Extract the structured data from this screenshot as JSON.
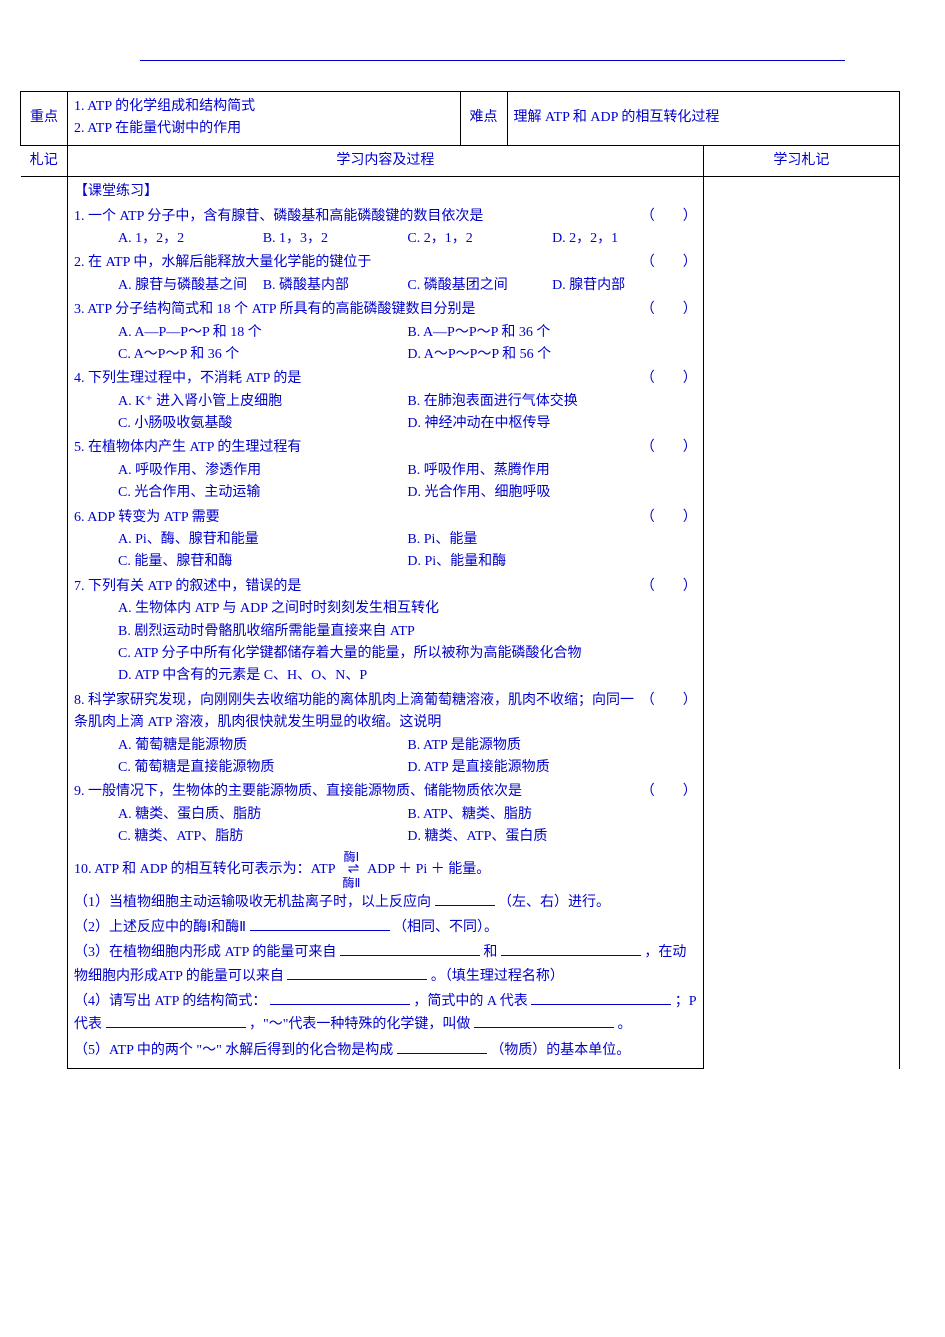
{
  "colors": {
    "text": "#0000cc",
    "border": "#000000",
    "bg": "#ffffff"
  },
  "top_row": {
    "zhongdian_label": "重点",
    "zhongdian_text1": "1. ATP 的化学组成和结构简式",
    "zhongdian_text2": "2. ATP 在能量代谢中的作用",
    "nandian_label": "难点",
    "nandian_text": "理解 ATP 和 ADP 的相互转化过程"
  },
  "section_header": {
    "left_notes": "札记",
    "center": "学习内容及过程",
    "right_notes": "学习札记"
  },
  "heading": "【课堂练习】",
  "questions": [
    {
      "n": "1",
      "stem": "一个 ATP 分子中，含有腺苷、磷酸基和高能磷酸键的数目依次是",
      "paren": "（　　）",
      "opts": [
        "A. 1，2，2",
        "B. 1，3，2",
        "C. 2，1，2",
        "D. 2，2，1"
      ],
      "cols": 4
    },
    {
      "n": "2",
      "stem": "在 ATP 中，水解后能释放大量化学能的键位于",
      "paren": "（　　）",
      "opts": [
        "A. 腺苷与磷酸基之间",
        "B. 磷酸基内部",
        "C. 磷酸基团之间",
        "D. 腺苷内部"
      ],
      "cols": 4
    },
    {
      "n": "3",
      "stem": "ATP 分子结构简式和 18 个 ATP 所具有的高能磷酸键数目分别是",
      "paren": "（　　）",
      "opts": [
        "A. A—P—P～P 和 18 个",
        "B. A—P～P～P 和 36 个",
        "C. A～P～P 和 36 个",
        "D. A～P～P～P 和 56 个"
      ],
      "cols": 2
    },
    {
      "n": "4",
      "stem": "下列生理过程中，不消耗 ATP 的是",
      "paren": "（　　）",
      "opts": [
        "A. K⁺ 进入肾小管上皮细胞",
        "B. 在肺泡表面进行气体交换",
        "C. 小肠吸收氨基酸",
        "D. 神经冲动在中枢传导"
      ],
      "cols": 2
    },
    {
      "n": "5",
      "stem": "在植物体内产生 ATP 的生理过程有",
      "paren": "（　　）",
      "opts": [
        "A. 呼吸作用、渗透作用",
        "B. 呼吸作用、蒸腾作用",
        "C. 光合作用、主动运输",
        "D. 光合作用、细胞呼吸"
      ],
      "cols": 2
    },
    {
      "n": "6",
      "stem": "ADP 转变为 ATP 需要",
      "paren": "（　　）",
      "opts": [
        "A. Pi、酶、腺苷和能量",
        "B. Pi、能量",
        "C. 能量、腺苷和酶",
        "D. Pi、能量和酶"
      ],
      "cols": 2
    },
    {
      "n": "7",
      "stem": "下列有关 ATP 的叙述中，错误的是",
      "paren": "（　　）",
      "opts": [
        "A. 生物体内 ATP 与 ADP 之间时时刻刻发生相互转化",
        "B. 剧烈运动时骨骼肌收缩所需能量直接来自 ATP",
        "C. ATP 分子中所有化学键都储存着大量的能量，所以被称为高能磷酸化合物",
        "D. ATP 中含有的元素是 C、H、O、N、P"
      ],
      "cols": 1
    },
    {
      "n": "8",
      "stem": "科学家研究发现，向刚刚失去收缩功能的离体肌肉上滴葡萄糖溶液，肌肉不收缩；向同一条肌肉上滴 ATP 溶液，肌肉很快就发生明显的收缩。这说明",
      "paren": "（　　）",
      "opts": [
        "A. 葡萄糖是能源物质",
        "B. ATP 是能源物质",
        "C. 葡萄糖是直接能源物质",
        "D. ATP 是直接能源物质"
      ],
      "cols": 2
    },
    {
      "n": "9",
      "stem": "一般情况下，生物体的主要能源物质、直接能源物质、储能物质依次是",
      "paren": "（　　）",
      "opts": [
        "A. 糖类、蛋白质、脂肪",
        "B. ATP、糖类、脂肪",
        "C. 糖类、ATP、脂肪",
        "D. 糖类、ATP、蛋白质"
      ],
      "cols": 2
    }
  ],
  "q10": {
    "intro_a": "10. ATP 和 ADP 的相互转化可表示为：ATP",
    "enzyme_top": "酶Ⅰ",
    "enzyme_bot": "酶Ⅱ",
    "intro_b": "ADP ＋ Pi ＋ 能量。",
    "p1a": "（1）当植物细胞主动运输吸收无机盐离子时，以上反应向",
    "p1b": "（左、右）进行。",
    "p2a": "（2）上述反应中的酶Ⅰ和酶Ⅱ",
    "p2b": "（相同、不同）。",
    "p3a": "（3）在植物细胞内形成 ATP 的能量可来自",
    "p3mid": "和",
    "p3b": "，在动物细胞内形成ATP 的能量可以来自",
    "p3c": "。（填生理过程名称）",
    "p4a": "（4）请写出 ATP 的结构简式：",
    "p4b": "，简式中的 A 代表",
    "p4c": "；P 代表",
    "p4d": "，\"～\"代表一种特殊的化学键，叫做",
    "p4e": "。",
    "p5a": "（5）ATP 中的两个 \"～\" 水解后得到的化合物是构成",
    "p5b": "（物质）的基本单位。"
  }
}
